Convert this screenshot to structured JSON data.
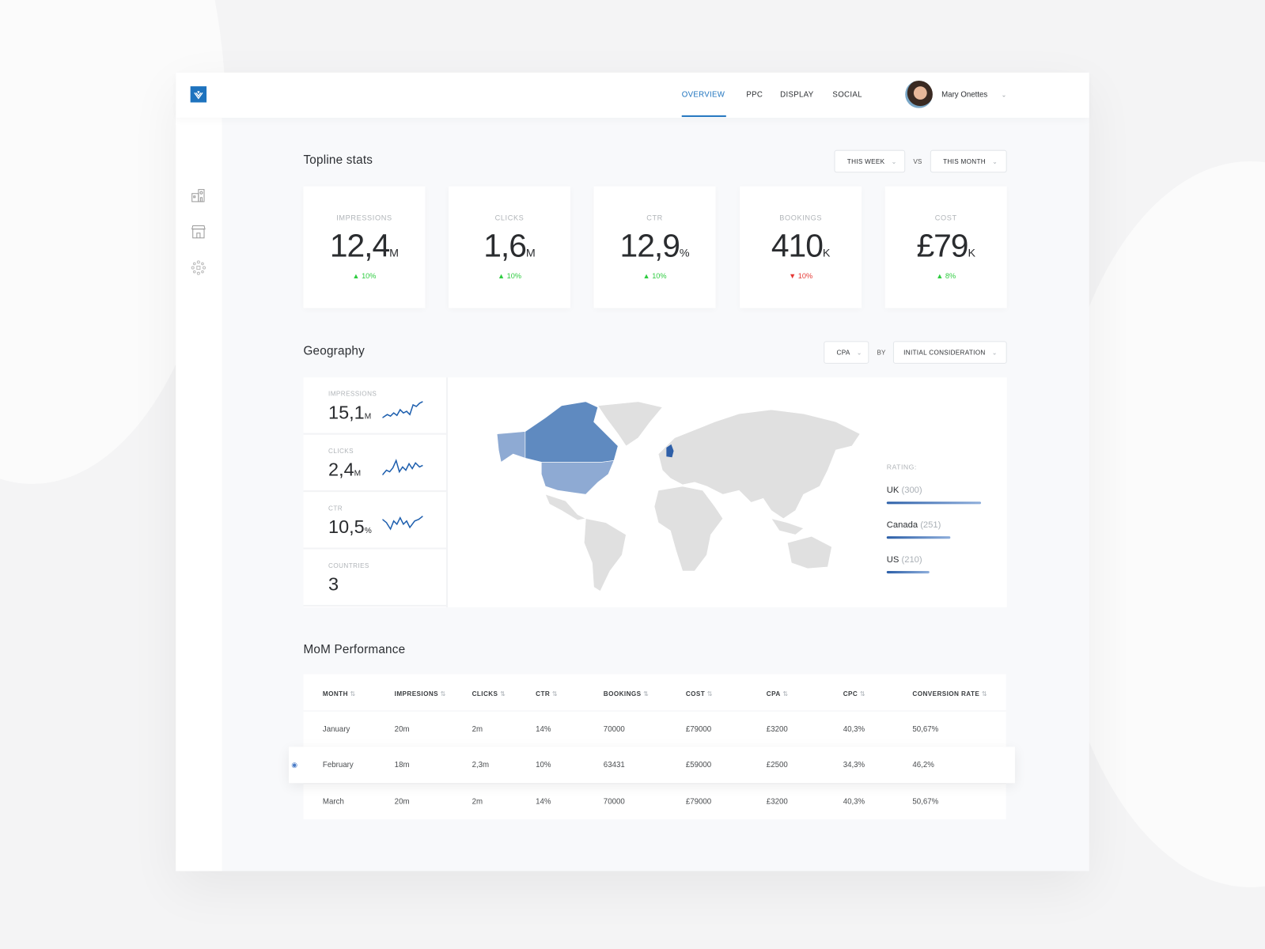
{
  "header": {
    "nav": [
      "OVERVIEW",
      "PPC",
      "DISPLAY",
      "SOCIAL"
    ],
    "active": "OVERVIEW",
    "user": "Mary Onettes"
  },
  "sidebar": {
    "icons": [
      "building-icon",
      "store-icon",
      "network-icon"
    ]
  },
  "topline": {
    "title": "Topline stats",
    "period_a": "THIS WEEK",
    "vs": "VS",
    "period_b": "THIS MONTH",
    "cards": [
      {
        "label": "IMPRESSIONS",
        "value": "12,4",
        "unit": "M",
        "change": "10%",
        "direction": "up"
      },
      {
        "label": "CLICKS",
        "value": "1,6",
        "unit": "M",
        "change": "10%",
        "direction": "up"
      },
      {
        "label": "CTR",
        "value": "12,9",
        "unit": "%",
        "change": "10%",
        "direction": "up"
      },
      {
        "label": "BOOKINGS",
        "value": "410",
        "unit": "K",
        "change": "10%",
        "direction": "down"
      },
      {
        "label": "COST",
        "value": "£79",
        "unit": "K",
        "change": "8%",
        "direction": "up"
      }
    ]
  },
  "geography": {
    "title": "Geography",
    "metric": "CPA",
    "by": "BY",
    "dimension": "INITIAL CONSIDERATION",
    "stats": [
      {
        "label": "IMPRESSIONS",
        "value": "15,1",
        "unit": "M"
      },
      {
        "label": "CLICKS",
        "value": "2,4",
        "unit": "M"
      },
      {
        "label": "CTR",
        "value": "10,5",
        "unit": "%"
      },
      {
        "label": "COUNTRIES",
        "value": "3",
        "unit": ""
      }
    ],
    "rating_label": "RATING:",
    "ratings": [
      {
        "country": "UK",
        "score": "(300)",
        "value": 300
      },
      {
        "country": "Canada",
        "score": "(251)",
        "value": 251
      },
      {
        "country": "US",
        "score": "(210)",
        "value": 210
      }
    ],
    "colors": {
      "uk": "#2e5fa8",
      "canada": "#5f8ac0",
      "us": "#8eaad3",
      "other": "#e0e0e0"
    }
  },
  "mom": {
    "title": "MoM Performance",
    "columns": [
      "MONTH",
      "IMPRESIONS",
      "CLICKS",
      "CTR",
      "BOOKINGS",
      "COST",
      "CPA",
      "CPC",
      "CONVERSION RATE"
    ],
    "rows": [
      [
        "January",
        "20m",
        "2m",
        "14%",
        "70000",
        "£79000",
        "£3200",
        "40,3%",
        "50,67%"
      ],
      [
        "February",
        "18m",
        "2,3m",
        "10%",
        "63431",
        "£59000",
        "£2500",
        "34,3%",
        "46,2%"
      ],
      [
        "March",
        "20m",
        "2m",
        "14%",
        "70000",
        "£79000",
        "£3200",
        "40,3%",
        "50,67%"
      ]
    ]
  }
}
